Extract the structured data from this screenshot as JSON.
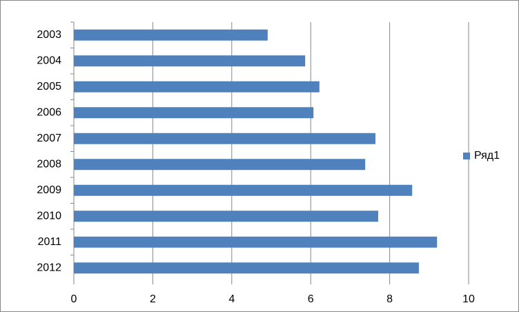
{
  "chart_data": {
    "type": "hbar",
    "categories": [
      "2003",
      "2004",
      "2005",
      "2006",
      "2007",
      "2008",
      "2009",
      "2010",
      "2011",
      "2012"
    ],
    "series": [
      {
        "name": "Ряд1",
        "color": "#4f81bd",
        "values": [
          4.91,
          5.86,
          6.22,
          6.07,
          7.64,
          7.38,
          8.57,
          7.71,
          9.2,
          8.74
        ]
      }
    ],
    "xlim": [
      0,
      10
    ],
    "xticks": [
      0,
      2,
      4,
      6,
      8,
      10
    ],
    "grid": true,
    "legend": "right"
  }
}
